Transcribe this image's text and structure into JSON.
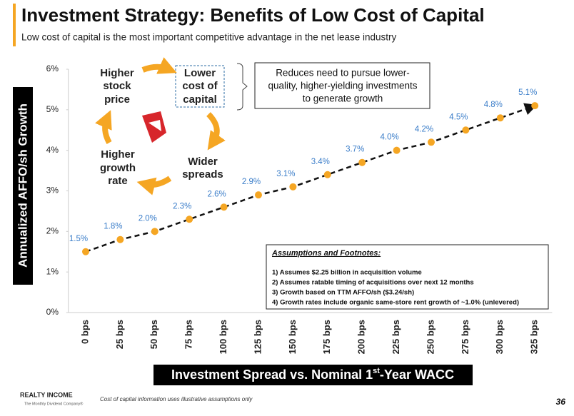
{
  "header": {
    "title": "Investment Strategy: Benefits of Low Cost of Capital",
    "subtitle": "Low cost of capital is the most important competitive advantage in the net lease industry"
  },
  "cycle": {
    "stock": [
      "Higher",
      "stock",
      "price"
    ],
    "cost": [
      "Lower",
      "cost of",
      "capital"
    ],
    "spreads": [
      "Wider",
      "spreads"
    ],
    "growth": [
      "Higher",
      "growth",
      "rate"
    ]
  },
  "callout": [
    "Reduces need to pursue lower-",
    "quality, higher-yielding investments",
    "to generate growth"
  ],
  "footnotes": {
    "title": "Assumptions and Footnotes:",
    "items": [
      "1)  Assumes $2.25 billion in acquisition volume",
      "2)  Assumes ratable timing of acquisitions over next 12 months",
      "3)  Growth based on TTM AFFO/sh ($3.24/sh)",
      "4)  Growth rates include organic same-store rent growth of ~1.0% (unlevered)"
    ]
  },
  "footer": {
    "company": "REALTY INCOME",
    "tagline": "The Monthly Dividend Company®",
    "note": "Cost of capital information uses illustrative assumptions only",
    "page": "36"
  },
  "chart_data": {
    "type": "line",
    "y_label": "Annualized AFFO/sh Growth",
    "x_label": [
      "Investment Spread vs. Nominal 1",
      "st",
      "-Year WACC"
    ],
    "categories": [
      "0 bps",
      "25 bps",
      "50 bps",
      "75 bps",
      "100 bps",
      "125 bps",
      "150 bps",
      "175 bps",
      "200 bps",
      "225 bps",
      "250 bps",
      "275 bps",
      "300 bps",
      "325 bps"
    ],
    "values": [
      1.5,
      1.8,
      2.0,
      2.3,
      2.6,
      2.9,
      3.1,
      3.4,
      3.7,
      4.0,
      4.2,
      4.5,
      4.8,
      5.1
    ],
    "value_labels": [
      "1.5%",
      "1.8%",
      "2.0%",
      "2.3%",
      "2.6%",
      "2.9%",
      "3.1%",
      "3.4%",
      "3.7%",
      "4.0%",
      "4.2%",
      "4.5%",
      "4.8%",
      "5.1%"
    ],
    "color": "#f5a623",
    "label_color": "#3a7dc9",
    "ylim": [
      0,
      6
    ],
    "yticks": [
      {
        "value": 0,
        "label": "0%"
      },
      {
        "value": 1,
        "label": "1%"
      },
      {
        "value": 2,
        "label": "2%"
      },
      {
        "value": 3,
        "label": "3%"
      },
      {
        "value": 4,
        "label": "4%"
      },
      {
        "value": 5,
        "label": "5%"
      },
      {
        "value": 6,
        "label": "6%"
      }
    ]
  }
}
